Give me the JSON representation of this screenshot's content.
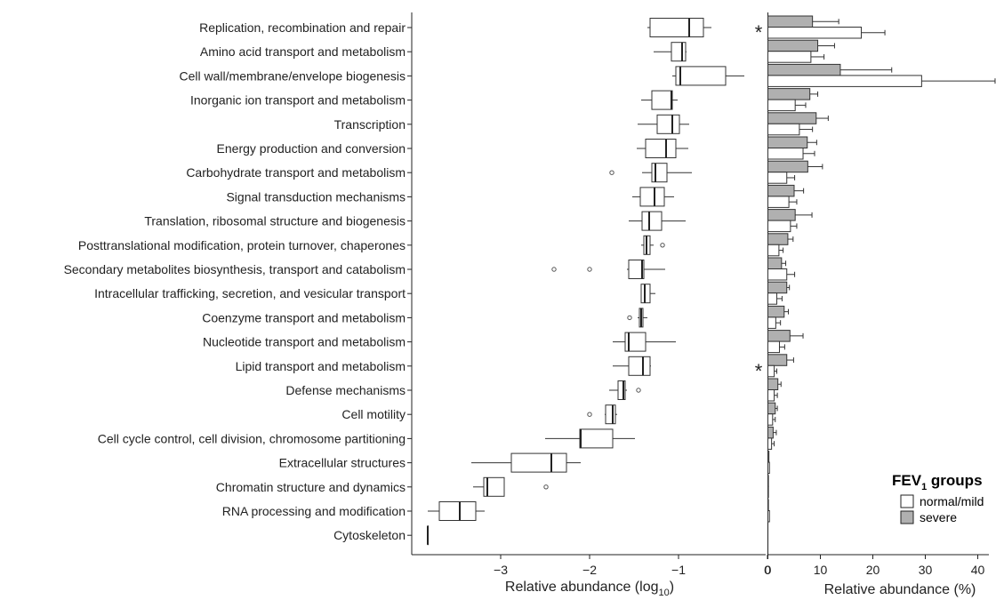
{
  "chart_data": [
    {
      "type": "boxplot",
      "xlabel": "Relative abundance (log",
      "xlabel_sub": "10",
      "xlabel_close": ")",
      "xlim": [
        -4.0,
        0.0
      ],
      "xticks": [
        -3,
        -2,
        -1,
        0
      ],
      "tick_labels": [
        "−3",
        "−2",
        "−1",
        "0"
      ],
      "categories": [
        "Replication, recombination and repair",
        "Amino acid transport and metabolism",
        "Cell wall/membrane/envelope biogenesis",
        "Inorganic ion transport and metabolism",
        "Transcription",
        "Energy production and conversion",
        "Carbohydrate transport and metabolism",
        "Signal transduction mechanisms",
        "Translation, ribosomal structure and biogenesis",
        "Posttranslational modification, protein turnover, chaperones",
        "Secondary metabolites biosynthesis, transport and catabolism",
        "Intracellular trafficking, secretion, and vesicular transport",
        "Coenzyme transport and metabolism",
        "Nucleotide transport and metabolism",
        "Lipid transport and metabolism",
        "Defense mechanisms",
        "Cell motility",
        "Cell cycle control, cell division, chromosome partitioning",
        "Extracellular structures",
        "Chromatin structure and dynamics",
        "RNA processing and modification",
        "Cytoskeleton"
      ],
      "boxes": [
        {
          "min": -1.35,
          "q1": -1.32,
          "median": -0.88,
          "q3": -0.72,
          "max": -0.63,
          "outliers": []
        },
        {
          "min": -1.28,
          "q1": -1.08,
          "median": -0.96,
          "q3": -0.92,
          "max": -0.91,
          "outliers": []
        },
        {
          "min": -1.07,
          "q1": -1.03,
          "median": -0.98,
          "q3": -0.47,
          "max": -0.26,
          "outliers": []
        },
        {
          "min": -1.42,
          "q1": -1.3,
          "median": -1.08,
          "q3": -1.07,
          "max": -1.01,
          "outliers": []
        },
        {
          "min": -1.46,
          "q1": -1.24,
          "median": -1.07,
          "q3": -0.99,
          "max": -0.88,
          "outliers": []
        },
        {
          "min": -1.47,
          "q1": -1.37,
          "median": -1.14,
          "q3": -1.03,
          "max": -0.89,
          "outliers": []
        },
        {
          "min": -1.41,
          "q1": -1.3,
          "median": -1.26,
          "q3": -1.13,
          "max": -0.85,
          "outliers": [
            -1.75
          ]
        },
        {
          "min": -1.52,
          "q1": -1.43,
          "median": -1.27,
          "q3": -1.16,
          "max": -1.05,
          "outliers": []
        },
        {
          "min": -1.56,
          "q1": -1.41,
          "median": -1.33,
          "q3": -1.19,
          "max": -0.92,
          "outliers": []
        },
        {
          "min": -1.42,
          "q1": -1.39,
          "median": -1.36,
          "q3": -1.32,
          "max": -1.28,
          "outliers": [
            -1.18
          ]
        },
        {
          "min": -1.58,
          "q1": -1.56,
          "median": -1.41,
          "q3": -1.39,
          "max": -1.15,
          "outliers": [
            -2.4,
            -2.0
          ]
        },
        {
          "min": -1.42,
          "q1": -1.42,
          "median": -1.38,
          "q3": -1.32,
          "max": -1.26,
          "outliers": []
        },
        {
          "min": -1.46,
          "q1": -1.44,
          "median": -1.42,
          "q3": -1.4,
          "max": -1.35,
          "outliers": [
            -1.55
          ]
        },
        {
          "min": -1.74,
          "q1": -1.6,
          "median": -1.56,
          "q3": -1.37,
          "max": -1.03,
          "outliers": []
        },
        {
          "min": -1.74,
          "q1": -1.56,
          "median": -1.4,
          "q3": -1.32,
          "max": -1.31,
          "outliers": []
        },
        {
          "min": -1.78,
          "q1": -1.68,
          "median": -1.62,
          "q3": -1.6,
          "max": -1.58,
          "outliers": [
            -1.45
          ]
        },
        {
          "min": -1.83,
          "q1": -1.82,
          "median": -1.74,
          "q3": -1.71,
          "max": -1.69,
          "outliers": [
            -2.0
          ]
        },
        {
          "min": -2.5,
          "q1": -2.11,
          "median": -2.1,
          "q3": -1.74,
          "max": -1.49,
          "outliers": []
        },
        {
          "min": -3.33,
          "q1": -2.88,
          "median": -2.43,
          "q3": -2.26,
          "max": -2.1,
          "outliers": []
        },
        {
          "min": -3.31,
          "q1": -3.19,
          "median": -3.15,
          "q3": -2.96,
          "max": -2.96,
          "outliers": [
            -2.49
          ]
        },
        {
          "min": -3.82,
          "q1": -3.69,
          "median": -3.46,
          "q3": -3.28,
          "max": -3.18,
          "outliers": []
        },
        {
          "min": -3.82,
          "q1": -3.82,
          "median": -3.82,
          "q3": -3.82,
          "max": -3.82,
          "outliers": []
        }
      ]
    },
    {
      "type": "bar",
      "orientation": "horizontal",
      "xlabel": "Relative abundance (%)",
      "xlim": [
        0,
        42
      ],
      "xticks": [
        0,
        10,
        20,
        30,
        40
      ],
      "tick_labels": [
        "0",
        "10",
        "20",
        "30",
        "40"
      ],
      "significance_marker": "*",
      "significant_categories": [
        0,
        14
      ],
      "series": [
        {
          "name": "severe",
          "color": "#b0b0b0",
          "values": [
            8.5,
            9.5,
            13.8,
            8.0,
            9.2,
            7.5,
            7.6,
            5.0,
            5.2,
            3.8,
            2.6,
            3.6,
            3.1,
            4.2,
            3.6,
            1.9,
            1.4,
            1.0,
            0.2,
            0.1,
            0.1,
            0.0
          ],
          "errors": [
            5.0,
            3.2,
            9.8,
            1.5,
            2.3,
            1.8,
            2.8,
            1.8,
            3.2,
            1.0,
            0.8,
            0.5,
            0.8,
            2.5,
            1.3,
            0.6,
            0.4,
            0.6,
            0.0,
            0.0,
            0.0,
            0.0
          ]
        },
        {
          "name": "normal/mild",
          "color": "#ffffff",
          "values": [
            17.8,
            8.2,
            29.3,
            5.2,
            6.0,
            6.7,
            3.6,
            4.0,
            4.3,
            2.1,
            3.6,
            1.7,
            1.5,
            2.2,
            1.2,
            1.2,
            0.9,
            0.7,
            0.3,
            0.1,
            0.3,
            0.0
          ],
          "errors": [
            4.5,
            2.5,
            14.0,
            2.0,
            2.5,
            2.2,
            1.5,
            1.5,
            1.2,
            0.8,
            1.5,
            1.0,
            0.9,
            1.0,
            0.5,
            0.6,
            0.5,
            0.5,
            0.0,
            0.0,
            0.0,
            0.0
          ]
        }
      ],
      "legend": {
        "title_main": "FEV",
        "title_sub": "1",
        "title_rest": " groups",
        "position": "bottom-right",
        "entries": [
          "normal/mild",
          "severe"
        ]
      }
    }
  ]
}
